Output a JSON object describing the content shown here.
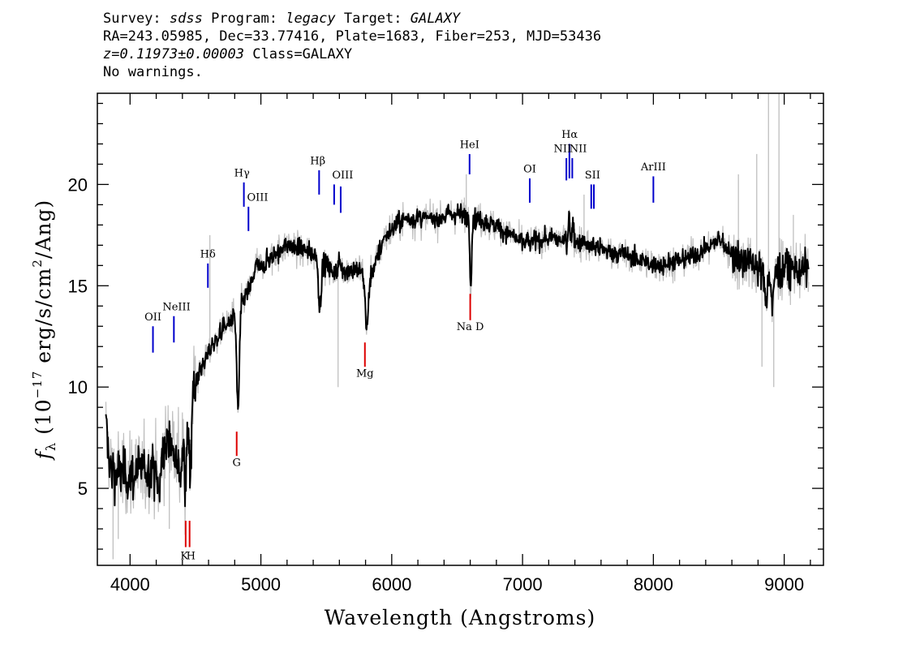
{
  "header": {
    "line1": {
      "survey_label": "Survey: ",
      "survey": "sdss",
      "program_label": " Program: ",
      "program": "legacy",
      "target_label": " Target: ",
      "target": "GALAXY"
    },
    "line2": "RA=243.05985, Dec=33.77416, Plate=1683, Fiber=253, MJD=53436",
    "line3": {
      "z": "z=0.11973±0.00003",
      "class": " Class=GALAXY"
    },
    "line4": "No warnings."
  },
  "chart_data": {
    "type": "line",
    "xlabel": "Wavelength (Angstroms)",
    "ylabel": "f_λ (10^-17 erg/s/cm^2/Ang)",
    "ylabel_parts": {
      "f": "f",
      "sub": "λ",
      "pre": " (10",
      "exp1": "−17",
      "mid": " erg/s/cm",
      "exp2": "2",
      "post": "/Ang)"
    },
    "xlim": [
      3750,
      9300
    ],
    "ylim": [
      1.2,
      24.5
    ],
    "xticks": [
      4000,
      5000,
      6000,
      7000,
      8000,
      9000
    ],
    "yticks": [
      5,
      10,
      15,
      20
    ],
    "colors": {
      "spectrum": "#000000",
      "noise": "#bfbfbf",
      "emission": "#0000cc",
      "absorption": "#dd0000"
    },
    "continuum_anchors": [
      [
        3815,
        8.0
      ],
      [
        3850,
        6.0
      ],
      [
        3950,
        5.6
      ],
      [
        4100,
        5.8
      ],
      [
        4200,
        6.2
      ],
      [
        4300,
        7.3
      ],
      [
        4400,
        7.2
      ],
      [
        4480,
        10.0
      ],
      [
        4600,
        11.7
      ],
      [
        4700,
        12.8
      ],
      [
        4800,
        13.5
      ],
      [
        4900,
        14.7
      ],
      [
        5000,
        16.0
      ],
      [
        5200,
        17.0
      ],
      [
        5400,
        16.6
      ],
      [
        5550,
        15.7
      ],
      [
        5700,
        15.8
      ],
      [
        5850,
        15.7
      ],
      [
        5950,
        17.5
      ],
      [
        6100,
        18.3
      ],
      [
        6300,
        18.3
      ],
      [
        6500,
        18.6
      ],
      [
        6700,
        18.2
      ],
      [
        6900,
        17.6
      ],
      [
        7000,
        17.1
      ],
      [
        7200,
        17.3
      ],
      [
        7400,
        17.2
      ],
      [
        7600,
        16.8
      ],
      [
        7800,
        16.5
      ],
      [
        8000,
        16.0
      ],
      [
        8200,
        16.2
      ],
      [
        8400,
        16.8
      ],
      [
        8500,
        17.3
      ],
      [
        8600,
        16.6
      ],
      [
        8800,
        15.8
      ],
      [
        9000,
        15.8
      ],
      [
        9200,
        15.8
      ]
    ],
    "features": [
      [
        4220,
        -1.5,
        20
      ],
      [
        4380,
        -1.4,
        20
      ],
      [
        4425,
        -3.2,
        12
      ],
      [
        4460,
        -3.0,
        12
      ],
      [
        4825,
        -5.0,
        14
      ],
      [
        4960,
        0.6,
        14
      ],
      [
        5450,
        -2.4,
        14
      ],
      [
        5605,
        0.6,
        12
      ],
      [
        5810,
        -2.8,
        18
      ],
      [
        6605,
        -3.3,
        10
      ],
      [
        7355,
        1.7,
        7
      ],
      [
        7385,
        1.0,
        7
      ],
      [
        8860,
        -1.3,
        20
      ],
      [
        8910,
        -2.1,
        12
      ]
    ],
    "noise_spikes": [
      [
        8880,
        24.5
      ],
      [
        8960,
        24.5
      ],
      [
        8790,
        21.5
      ],
      [
        8650,
        20.5
      ],
      [
        9070,
        18.5
      ],
      [
        7470,
        19.5
      ],
      [
        6570,
        20.5
      ],
      [
        5590,
        10.0
      ],
      [
        8920,
        10.0
      ],
      [
        3870,
        1.5
      ],
      [
        3910,
        2.5
      ],
      [
        4300,
        3.0
      ],
      [
        4610,
        17.5
      ],
      [
        8830,
        11.0
      ]
    ],
    "emission_lines": [
      {
        "label": "OII",
        "x": 4175,
        "y_top": 13.0,
        "y_bot": 11.7
      },
      {
        "label": "NeIII",
        "x": 4335,
        "y_top": 13.5,
        "y_bot": 12.2
      },
      {
        "label": "Hδ",
        "x": 4595,
        "y_top": 16.1,
        "y_bot": 14.9
      },
      {
        "label": "Hγ",
        "x": 4870,
        "y_top": 20.1,
        "y_bot": 18.9
      },
      {
        "label": "OIII",
        "x": 4905,
        "y_top": 18.9,
        "y_bot": 17.7
      },
      {
        "label": "Hβ",
        "x": 5445,
        "y_top": 20.7,
        "y_bot": 19.5
      },
      {
        "label": "OIII",
        "x": 5560,
        "y_top": 20.0,
        "y_bot": 19.0
      },
      {
        "label": "OIII",
        "x": 5610,
        "y_top": 19.9,
        "y_bot": 18.6
      },
      {
        "label": "HeI",
        "x": 6595,
        "y_top": 21.5,
        "y_bot": 20.5
      },
      {
        "label": "OI",
        "x": 7055,
        "y_top": 20.3,
        "y_bot": 19.1
      },
      {
        "label": "NII",
        "x": 7335,
        "y_top": 21.3,
        "y_bot": 20.2
      },
      {
        "label": "Hα",
        "x": 7358,
        "y_top": 22.0,
        "y_bot": 20.3
      },
      {
        "label": "NII",
        "x": 7380,
        "y_top": 21.3,
        "y_bot": 20.3
      },
      {
        "label": "SII",
        "x": 7525,
        "y_top": 20.0,
        "y_bot": 18.8
      },
      {
        "label": "SII",
        "x": 7545,
        "y_top": 20.0,
        "y_bot": 18.8
      },
      {
        "label": "ArIII",
        "x": 8000,
        "y_top": 20.4,
        "y_bot": 19.1
      }
    ],
    "emission_labels": [
      {
        "text": "OII",
        "x": 4175,
        "y": 13.3
      },
      {
        "text": "NeIII",
        "x": 4355,
        "y": 13.8
      },
      {
        "text": "Hδ",
        "x": 4595,
        "y": 16.4
      },
      {
        "text": "Hγ",
        "x": 4855,
        "y": 20.4
      },
      {
        "text": "OIII",
        "x": 4975,
        "y": 19.2
      },
      {
        "text": "Hβ",
        "x": 5435,
        "y": 21.0
      },
      {
        "text": "OIII",
        "x": 5625,
        "y": 20.3
      },
      {
        "text": "HeI",
        "x": 6595,
        "y": 21.8
      },
      {
        "text": "OI",
        "x": 7055,
        "y": 20.6
      },
      {
        "text": "NII",
        "x": 7305,
        "y": 21.6
      },
      {
        "text": "Hα",
        "x": 7360,
        "y": 22.3
      },
      {
        "text": "NII",
        "x": 7425,
        "y": 21.6
      },
      {
        "text": "SII",
        "x": 7535,
        "y": 20.3
      },
      {
        "text": "ArIII",
        "x": 8000,
        "y": 20.7
      }
    ],
    "absorption_lines": [
      {
        "label": "K",
        "x": 4425,
        "y_top": 3.4,
        "y_bot": 2.1
      },
      {
        "label": "H",
        "x": 4455,
        "y_top": 3.4,
        "y_bot": 2.1
      },
      {
        "label": "G",
        "x": 4815,
        "y_top": 7.8,
        "y_bot": 6.6
      },
      {
        "label": "Mg",
        "x": 5795,
        "y_top": 12.2,
        "y_bot": 11.0
      },
      {
        "label": "Na D",
        "x": 6600,
        "y_top": 14.6,
        "y_bot": 13.3
      }
    ],
    "absorption_labels": [
      {
        "text": "K",
        "x": 4415,
        "y": 1.5
      },
      {
        "text": "H",
        "x": 4465,
        "y": 1.5
      },
      {
        "text": "G",
        "x": 4815,
        "y": 6.1
      },
      {
        "text": "Mg",
        "x": 5795,
        "y": 10.5
      },
      {
        "text": "Na D",
        "x": 6600,
        "y": 12.8
      }
    ]
  }
}
